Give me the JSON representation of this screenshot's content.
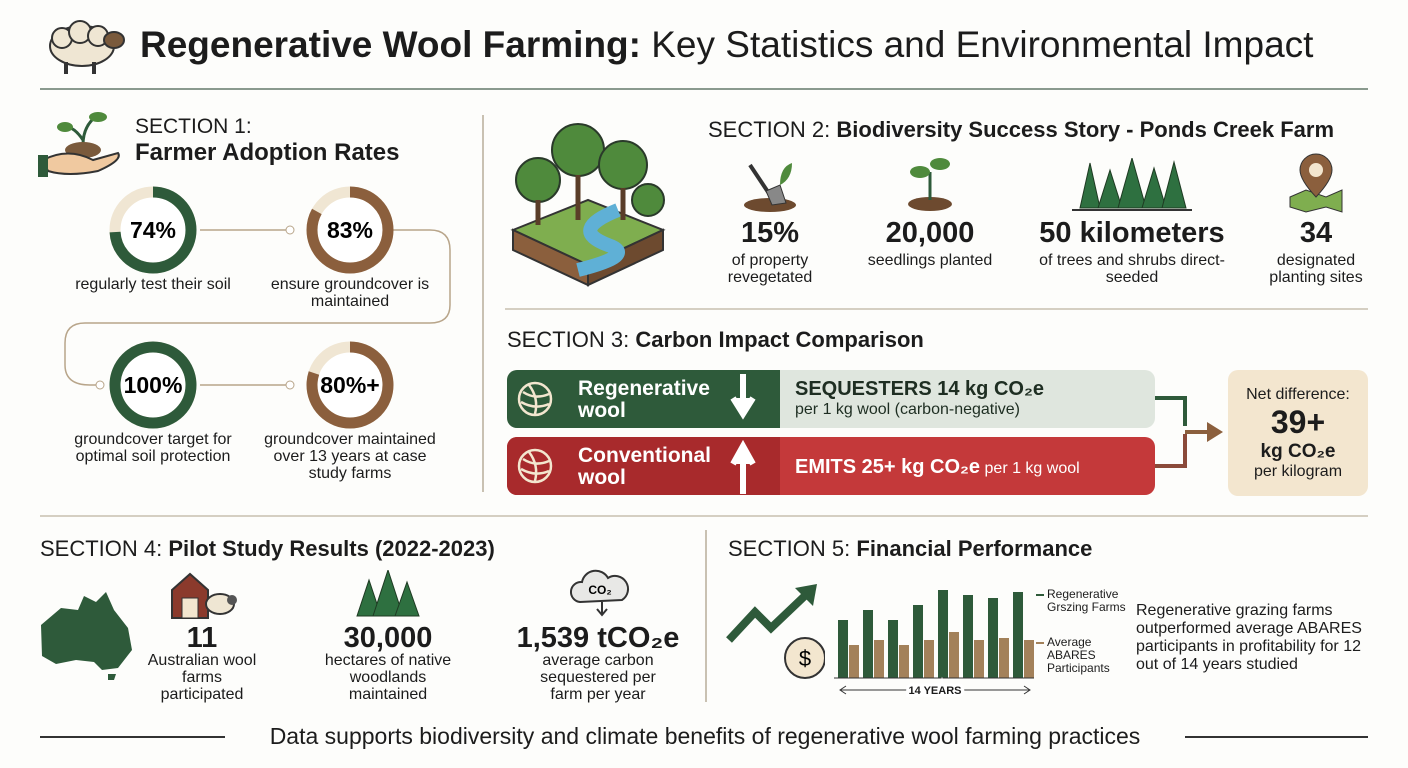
{
  "header": {
    "title_bold": "Regenerative Wool Farming:",
    "title_rest": "Key Statistics and Environmental Impact"
  },
  "section1": {
    "label": "SECTION 1:",
    "title": "Farmer Adoption Rates",
    "rings": [
      {
        "value": 74,
        "label": "74%",
        "caption": "regularly test their soil",
        "color": "#2e5a3a"
      },
      {
        "value": 83,
        "label": "83%",
        "caption": "ensure groundcover is maintained",
        "color": "#8b5f3d"
      },
      {
        "value": 100,
        "label": "100%",
        "caption": "groundcover target for optimal soil protection",
        "color": "#2e5a3a"
      },
      {
        "value": 80,
        "label": "80%+",
        "caption": "groundcover maintained over 13 years at case study farms",
        "color": "#8b5f3d"
      }
    ]
  },
  "section2": {
    "label": "SECTION 2:",
    "title": "Biodiversity Success Story - Ponds Creek Farm",
    "stats": [
      {
        "value": "15%",
        "caption": "of property revegetated"
      },
      {
        "value": "20,000",
        "caption": "seedlings planted"
      },
      {
        "value": "50 kilometers",
        "caption": "of trees and shrubs direct-seeded"
      },
      {
        "value": "34",
        "caption": "designated planting sites"
      }
    ]
  },
  "section3": {
    "label": "SECTION 3:",
    "title": "Carbon Impact Comparison",
    "rows": [
      {
        "name": "Regenerative wool",
        "headline": "SEQUESTERS 14 kg CO₂e",
        "detail": "per 1 kg wool (carbon-negative)"
      },
      {
        "name": "Conventional wool",
        "headline": "EMITS 25+ kg CO₂e",
        "detail": "per 1 kg wool"
      }
    ],
    "net": {
      "label": "Net difference:",
      "value": "39+",
      "unit": "kg CO₂e",
      "per": "per kilogram"
    }
  },
  "section4": {
    "label": "SECTION 4:",
    "title": "Pilot Study Results (2022-2023)",
    "icon_label": "CO₂",
    "stats": [
      {
        "value": "11",
        "caption": "Australian wool farms participated"
      },
      {
        "value": "30,000",
        "caption": "hectares of native woodlands maintained"
      },
      {
        "value": "1,539 tCO₂e",
        "caption": "average carbon sequestered per farm per year"
      }
    ]
  },
  "section5": {
    "label": "SECTION 5:",
    "title": "Financial Performance",
    "icon_label": "$",
    "chart": {
      "ylim": [
        0,
        100
      ],
      "x_label": "14 YEARS",
      "series": [
        {
          "name": "Regenerative Grszing Farms",
          "color": "#2e5a3a",
          "values": [
            58,
            68,
            58,
            73,
            88,
            83,
            80,
            86
          ]
        },
        {
          "name": "Average ABARES Participants",
          "color": "#a3815a",
          "values": [
            33,
            38,
            33,
            38,
            46,
            38,
            40,
            38
          ]
        }
      ]
    },
    "text": "Regenerative grazing farms outperformed average ABARES participants in profitability for 12 out of 14 years studied"
  },
  "footer": "Data supports biodiversity and climate benefits of regenerative wool farming practices"
}
